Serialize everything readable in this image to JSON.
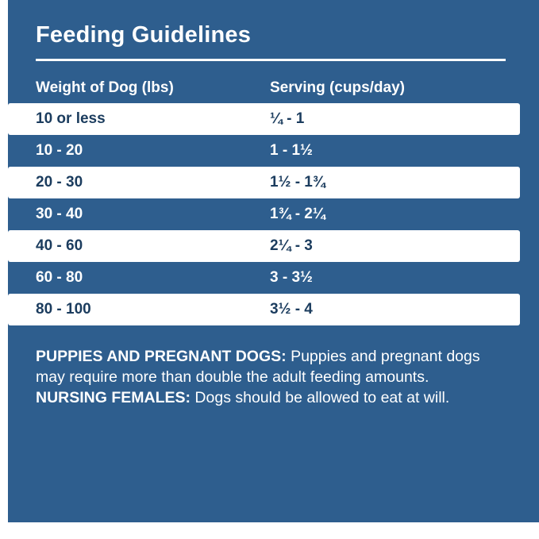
{
  "panel": {
    "title": "Feeding Guidelines",
    "colors": {
      "background_blue": "#2E5E8E",
      "row_white": "#FFFFFF",
      "dark_text": "#1B3C5E"
    }
  },
  "table": {
    "headers": {
      "weight": "Weight of Dog (lbs)",
      "serving": "Serving (cups/day)"
    },
    "rows": [
      {
        "weight": "10 or less",
        "serving": "¼ - 1"
      },
      {
        "weight": "10 - 20",
        "serving": "1 - 1½"
      },
      {
        "weight": "20 - 30",
        "serving": "1½ - 1¾"
      },
      {
        "weight": "30 - 40",
        "serving": "1¾ - 2¼"
      },
      {
        "weight": "40 - 60",
        "serving": "2¼ - 3"
      },
      {
        "weight": "60 - 80",
        "serving": "3 - 3½"
      },
      {
        "weight": "80 - 100",
        "serving": "3½ - 4"
      }
    ]
  },
  "notes": {
    "note1_label": "PUPPIES AND PREGNANT DOGS:",
    "note1_text": "Puppies and pregnant dogs may require more than double the adult feeding amounts.",
    "note2_label": "NURSING FEMALES:",
    "note2_text": "Dogs should be allowed to eat at will."
  }
}
